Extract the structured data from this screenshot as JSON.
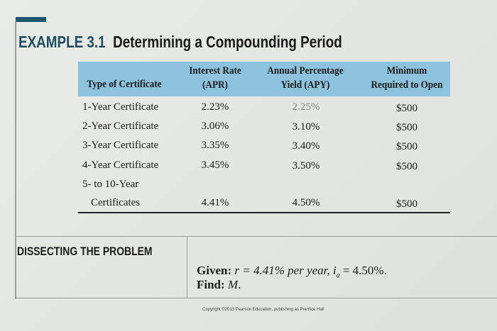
{
  "example": {
    "label": "EXAMPLE 3.1",
    "title": "Determining a Compounding Period"
  },
  "table": {
    "headers": [
      "Type of Certificate",
      "Interest Rate (APR)",
      "Annual Percentage Yield (APY)",
      "Minimum Required to Open"
    ],
    "header_lines": {
      "col2": [
        "Interest Rate",
        "(APR)"
      ],
      "col3": [
        "Annual Percentage",
        "Yield (APY)"
      ],
      "col4": [
        "Minimum",
        "Required to Open"
      ]
    },
    "rows": [
      {
        "type": "1-Year Certificate",
        "apr": "2.23%",
        "apy": "2.25%",
        "min": "$500"
      },
      {
        "type": "2-Year Certificate",
        "apr": "3.06%",
        "apy": "3.10%",
        "min": "$500"
      },
      {
        "type": "3-Year Certificate",
        "apr": "3.35%",
        "apy": "3.40%",
        "min": "$500"
      },
      {
        "type": "4-Year Certificate",
        "apr": "3.45%",
        "apy": "3.50%",
        "min": "$500"
      },
      {
        "type_line1": "5- to 10-Year",
        "type": "Certificates",
        "apr": "4.41%",
        "apy": "4.50%",
        "min": "$500"
      }
    ],
    "header_color": "#8cc2db"
  },
  "dissecting": {
    "heading": "DISSECTING THE PROBLEM",
    "given_label": "Given:",
    "given_text": "r = 4.41% per year, i",
    "given_sub": "a",
    "given_tail": " = 4.50%.",
    "find_label": "Find:",
    "find_text": "M",
    "find_tail": "."
  },
  "copyright": "Copyright ©2013 Pearson Education, publishing as Prentice Hall",
  "accent_color": "#1d5873"
}
